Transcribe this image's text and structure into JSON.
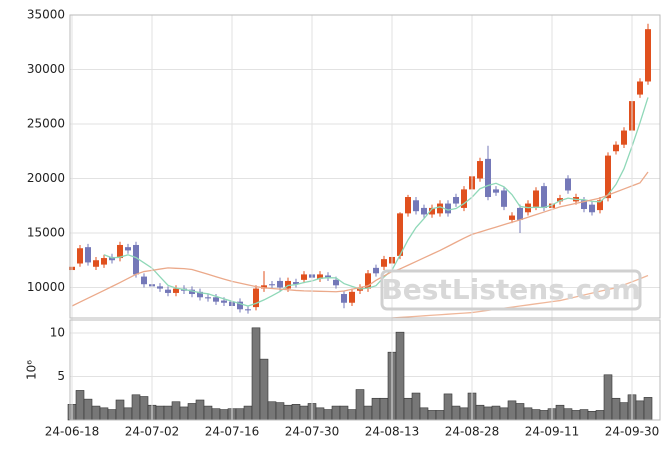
{
  "chart_data": [
    {
      "type": "candlestick",
      "open": [
        11600,
        12200,
        13700,
        11900,
        12100,
        12800,
        12700,
        13700,
        13900,
        11000,
        10300,
        10100,
        9800,
        9500,
        9900,
        9800,
        9600,
        9100,
        9100,
        8800,
        8700,
        8700,
        8000,
        8200,
        9900,
        10300,
        10600,
        9900,
        10500,
        10700,
        11200,
        10800,
        11100,
        10700,
        9400,
        8600,
        9700,
        9900,
        11800,
        11900,
        12200,
        12900,
        16800,
        18000,
        17300,
        16700,
        16800,
        17700,
        18300,
        17300,
        19000,
        20000,
        21800,
        19000,
        18900,
        16200,
        17300,
        16900,
        17400,
        19300,
        17300,
        17900,
        20000,
        17900,
        18000,
        17600,
        17100,
        18200,
        22500,
        23100,
        24400,
        27700,
        28900
      ],
      "high": [
        12200,
        13900,
        14000,
        12800,
        13000,
        13100,
        14200,
        14000,
        14200,
        11300,
        10600,
        10400,
        10100,
        10200,
        10200,
        10100,
        9900,
        9400,
        9400,
        9100,
        9000,
        9000,
        8300,
        10200,
        11500,
        10600,
        10900,
        10900,
        10800,
        11500,
        11500,
        11500,
        11400,
        11000,
        9700,
        9900,
        10300,
        11600,
        12100,
        12900,
        13100,
        16900,
        18500,
        18300,
        17600,
        17600,
        18000,
        18000,
        18600,
        19300,
        20500,
        21900,
        23000,
        19300,
        19200,
        16900,
        17600,
        18000,
        19200,
        19600,
        18000,
        18500,
        20300,
        18600,
        18300,
        17900,
        18300,
        22400,
        23400,
        24700,
        27400,
        29200,
        34200
      ],
      "low": [
        11300,
        11900,
        12000,
        11600,
        11800,
        12200,
        12400,
        13100,
        10900,
        10000,
        9800,
        9600,
        9200,
        9200,
        9400,
        9100,
        8800,
        8700,
        8400,
        8300,
        8000,
        7700,
        7600,
        7900,
        9600,
        9900,
        9700,
        9600,
        10000,
        10400,
        10600,
        10500,
        10600,
        9900,
        8100,
        8300,
        9400,
        9600,
        11000,
        11600,
        11900,
        12600,
        16500,
        16700,
        16400,
        16400,
        16500,
        16500,
        17400,
        17000,
        18700,
        19700,
        18000,
        18400,
        17100,
        15900,
        15000,
        16600,
        17100,
        17000,
        17000,
        17600,
        18600,
        17600,
        16900,
        16600,
        16800,
        17900,
        22200,
        22800,
        24100,
        27400,
        28600
      ],
      "close": [
        11900,
        13600,
        12300,
        12500,
        12700,
        12500,
        13900,
        13400,
        11200,
        10300,
        10100,
        9900,
        9500,
        9900,
        9700,
        9400,
        9100,
        9000,
        8700,
        8600,
        8300,
        8000,
        7900,
        9900,
        10200,
        10200,
        10000,
        10600,
        10300,
        11200,
        10900,
        11200,
        10900,
        10200,
        8600,
        9600,
        10000,
        11300,
        11300,
        12600,
        12800,
        16800,
        18300,
        17000,
        16700,
        17300,
        17700,
        16800,
        17700,
        19000,
        20200,
        21600,
        18300,
        18700,
        17400,
        16600,
        16200,
        17700,
        18900,
        17300,
        17700,
        18200,
        18900,
        18300,
        17200,
        16900,
        18000,
        22100,
        23100,
        24400,
        27100,
        28900,
        33700
      ],
      "up_color": "#e0501e",
      "down_color": "#7478b8",
      "series": [
        {
          "color": "#8fd8b8",
          "values": [
            null,
            null,
            null,
            null,
            13000,
            12720,
            12780,
            13000,
            12740,
            12260,
            11780,
            10980,
            10200,
            9940,
            9820,
            9680,
            9520,
            9420,
            9180,
            8960,
            8740,
            8520,
            8300,
            8540,
            8860,
            9240,
            9640,
            10180,
            10260,
            10460,
            10600,
            10840,
            10900,
            10880,
            10360,
            10100,
            9860,
            9940,
            10160,
            10960,
            11600,
            12960,
            14360,
            15500,
            16320,
            17220,
            17400,
            17100,
            17240,
            17700,
            18280,
            19060,
            19360,
            19560,
            19240,
            18520,
            17440,
            17320,
            17360,
            17340,
            17560,
            17960,
            18200,
            18080,
            18060,
            17900,
            17860,
            18500,
            19460,
            20900,
            22940,
            25120,
            27440
          ]
        },
        {
          "color": "#eba98a",
          "values": [
            8300,
            8660,
            9020,
            9370,
            9730,
            10090,
            10450,
            10830,
            11210,
            11460,
            11570,
            11690,
            11800,
            11760,
            11730,
            11650,
            11430,
            11210,
            10990,
            10770,
            10560,
            10400,
            10240,
            10080,
            9970,
            9910,
            9850,
            9790,
            9730,
            9690,
            9670,
            9650,
            9630,
            9610,
            9680,
            9840,
            10000,
            10160,
            10660,
            11060,
            11460,
            11700,
            12040,
            12380,
            12720,
            13060,
            13400,
            13770,
            14150,
            14520,
            14870,
            15090,
            15320,
            15540,
            15770,
            15990,
            16200,
            16440,
            16680,
            16920,
            17160,
            17400,
            17560,
            17720,
            17880,
            18040,
            18200,
            18480,
            18760,
            19040,
            19320,
            19600,
            20600
          ]
        },
        {
          "color": "#efb79a",
          "values": [
            null,
            null,
            null,
            null,
            null,
            null,
            null,
            null,
            null,
            null,
            null,
            null,
            null,
            null,
            null,
            null,
            null,
            null,
            null,
            null,
            null,
            null,
            null,
            null,
            null,
            null,
            null,
            null,
            null,
            null,
            null,
            null,
            null,
            null,
            null,
            null,
            null,
            null,
            null,
            null,
            7200,
            7250,
            7300,
            7350,
            7400,
            7450,
            7500,
            7550,
            7600,
            7650,
            7700,
            7800,
            7900,
            8000,
            8100,
            8200,
            8300,
            8400,
            8500,
            8600,
            8700,
            8800,
            8970,
            9140,
            9310,
            9480,
            9650,
            9820,
            9960,
            10240,
            10520,
            10800,
            11100
          ]
        }
      ],
      "ylim": [
        7200,
        35000
      ],
      "yticks": [
        10000,
        15000,
        20000,
        25000,
        30000,
        35000
      ],
      "grid": true,
      "watermark": "BestListens.com"
    },
    {
      "type": "bar",
      "categories": [
        "24-06-18",
        null,
        null,
        null,
        null,
        null,
        null,
        null,
        null,
        null,
        "24-07-02",
        null,
        null,
        null,
        null,
        null,
        null,
        null,
        null,
        null,
        "24-07-16",
        null,
        null,
        null,
        null,
        null,
        null,
        null,
        null,
        null,
        "24-07-30",
        null,
        null,
        null,
        null,
        null,
        null,
        null,
        null,
        null,
        "24-08-13",
        null,
        null,
        null,
        null,
        null,
        null,
        null,
        null,
        null,
        "24-08-28",
        null,
        null,
        null,
        null,
        null,
        null,
        null,
        null,
        null,
        "24-09-11",
        null,
        null,
        null,
        null,
        null,
        null,
        null,
        null,
        null,
        "24-09-30",
        null,
        null
      ],
      "values": [
        1.8,
        3.4,
        2.4,
        1.6,
        1.4,
        1.2,
        2.3,
        1.4,
        2.9,
        2.7,
        1.7,
        1.6,
        1.6,
        2.1,
        1.5,
        1.9,
        2.3,
        1.6,
        1.3,
        1.2,
        1.3,
        1.3,
        1.6,
        10.6,
        7.0,
        2.1,
        2.0,
        1.7,
        1.8,
        1.6,
        1.9,
        1.4,
        1.2,
        1.6,
        1.6,
        1.2,
        3.5,
        1.6,
        2.5,
        2.5,
        7.8,
        10.1,
        2.5,
        3.1,
        1.4,
        1.1,
        1.1,
        3.0,
        1.6,
        1.4,
        3.1,
        1.7,
        1.5,
        1.6,
        1.4,
        2.2,
        1.9,
        1.4,
        1.2,
        1.1,
        1.3,
        1.7,
        1.3,
        1.1,
        1.2,
        1.0,
        1.1,
        5.2,
        2.5,
        2.0,
        2.9,
        2.2,
        2.6
      ],
      "color": "#777777",
      "ylabel": "10⁶",
      "ylim": [
        0,
        11.5
      ],
      "yticks": [
        5,
        10
      ],
      "grid": true
    }
  ]
}
